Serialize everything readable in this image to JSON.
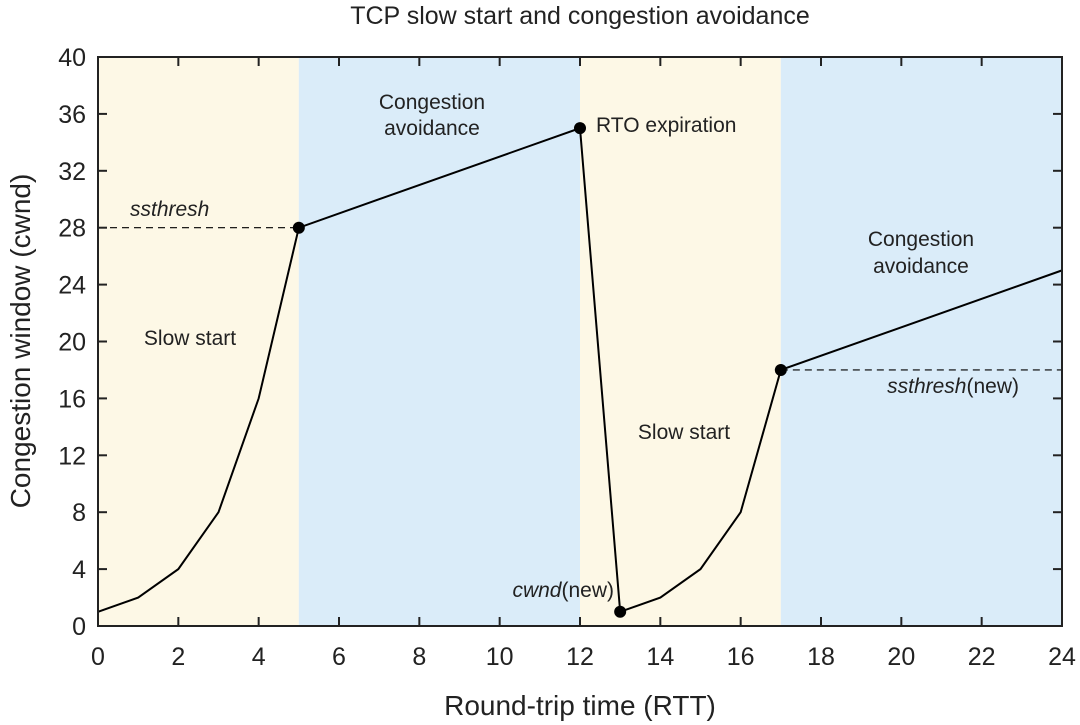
{
  "chart_data": {
    "type": "line",
    "title": "TCP slow start and congestion avoidance",
    "xlabel": "Round-trip time (RTT)",
    "ylabel": "Congestion window (cwnd)",
    "xlim": [
      0,
      24
    ],
    "ylim": [
      0,
      40
    ],
    "xticks": [
      0,
      2,
      4,
      6,
      8,
      10,
      12,
      14,
      16,
      18,
      20,
      22,
      24
    ],
    "yticks": [
      0,
      4,
      8,
      12,
      16,
      20,
      24,
      28,
      32,
      36,
      40
    ],
    "grid": false,
    "x": [
      0,
      1,
      2,
      3,
      4,
      5,
      12,
      13,
      14,
      15,
      16,
      17,
      24
    ],
    "y": [
      1,
      2,
      4,
      8,
      16,
      28,
      35,
      1,
      2,
      4,
      8,
      18,
      25
    ],
    "line_color": "#000000",
    "markers": [
      {
        "x": 5,
        "y": 28
      },
      {
        "x": 12,
        "y": 35
      },
      {
        "x": 13,
        "y": 1
      },
      {
        "x": 17,
        "y": 18
      }
    ],
    "regions": [
      {
        "from": 0,
        "to": 5,
        "color": "#fdf8e6",
        "label": "Slow start"
      },
      {
        "from": 5,
        "to": 12,
        "color": "#daecf9",
        "label": "Congestion avoidance"
      },
      {
        "from": 12,
        "to": 17,
        "color": "#fdf8e6",
        "label": "Slow start"
      },
      {
        "from": 17,
        "to": 24,
        "color": "#daecf9",
        "label": "Congestion avoidance"
      }
    ],
    "threshold_lines": [
      {
        "y": 28,
        "from": 0,
        "to": 5
      },
      {
        "y": 18,
        "from": 17,
        "to": 24
      }
    ],
    "annotations": {
      "ssthresh": "ssthresh",
      "rto": "RTO expiration",
      "cwnd_new_italic": "cwnd",
      "ssthresh_new_italic": "ssthresh",
      "new_suffix": "(new)",
      "ca_line1": "Congestion",
      "ca_line2": "avoidance"
    }
  }
}
